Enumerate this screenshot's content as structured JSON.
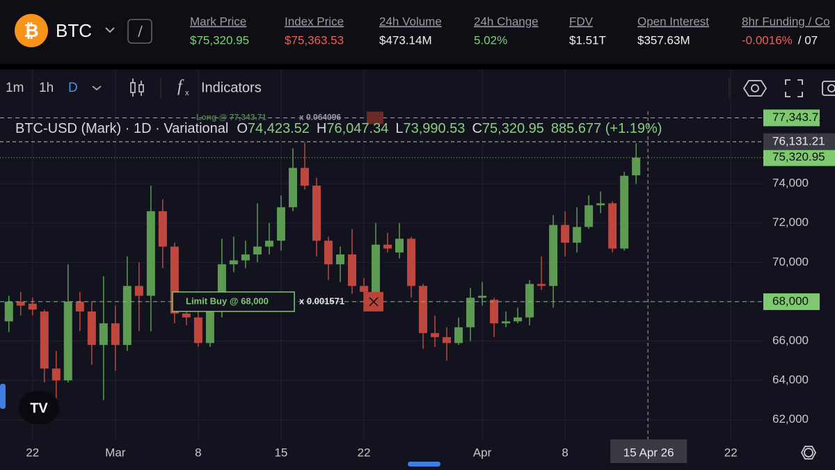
{
  "header": {
    "symbol": "BTC",
    "stats": [
      {
        "label": "Mark Price",
        "value": "$75,320.95",
        "tone": "up"
      },
      {
        "label": "Index Price",
        "value": "$75,363.53",
        "tone": "down"
      },
      {
        "label": "24h Volume",
        "value": "$473.14M",
        "tone": "plain"
      },
      {
        "label": "24h Change",
        "value": "5.02%",
        "tone": "up"
      },
      {
        "label": "FDV",
        "value": "$1.51T",
        "tone": "plain"
      },
      {
        "label": "Open Interest",
        "value": "$357.63M",
        "tone": "plain"
      },
      {
        "label": "8hr Funding / Co",
        "value": "-0.0016%",
        "tone": "down",
        "extra": "/ 07"
      }
    ]
  },
  "toolbar": {
    "intervals": [
      "1m",
      "1h",
      "D"
    ],
    "indicators": "Indicators"
  },
  "chart_data": {
    "type": "candlestick",
    "title": "BTC-USD (Mark) · 1D · Variational",
    "legend": [
      {
        "key": "O",
        "value": "74,423.52"
      },
      {
        "key": "H",
        "value": "76,047.34"
      },
      {
        "key": "L",
        "value": "73,990.53"
      },
      {
        "key": "C",
        "value": "75,320.95"
      }
    ],
    "change": "885.677 (+1.19%)",
    "up_color": "#5d9a52",
    "down_color": "#c0473e",
    "open": [
      67000,
      68000,
      67900,
      67500,
      64600,
      64000,
      68000,
      67500,
      65800,
      66900,
      65800,
      68800,
      68300,
      72600,
      70800,
      67400,
      67200,
      65900,
      67800,
      69900,
      70100,
      70400,
      70800,
      71100,
      72800,
      74800,
      73900,
      71100,
      69900,
      70400,
      68800,
      68000,
      70900,
      70500,
      71200,
      68800,
      66400,
      66200,
      65900,
      66700,
      68200,
      68100,
      66900,
      67000,
      67200,
      68900,
      68800,
      71900,
      71000,
      71800,
      72900,
      73000,
      70700,
      74423.52
    ],
    "high": [
      68300,
      68500,
      68200,
      67600,
      65500,
      69900,
      68500,
      68000,
      69300,
      67800,
      70300,
      70000,
      73900,
      73200,
      71000,
      67800,
      67500,
      68200,
      71200,
      71300,
      71100,
      73000,
      72000,
      73400,
      75800,
      76100,
      74300,
      71300,
      70800,
      71700,
      69200,
      72000,
      71500,
      72000,
      71300,
      68900,
      67300,
      66700,
      67200,
      68700,
      69000,
      68200,
      67500,
      67700,
      69100,
      70300,
      72400,
      72600,
      72800,
      73400,
      73600,
      73100,
      74600,
      76047.34
    ],
    "low": [
      66450,
      67300,
      67300,
      63900,
      62600,
      63900,
      66500,
      64800,
      63000,
      64500,
      65500,
      66500,
      66500,
      69700,
      66900,
      66800,
      65700,
      65700,
      67200,
      69500,
      69700,
      70000,
      70400,
      70600,
      72600,
      73700,
      70300,
      69100,
      69000,
      68400,
      67500,
      67700,
      70500,
      70200,
      68200,
      65600,
      65700,
      65000,
      65800,
      66000,
      67800,
      66200,
      66700,
      66900,
      66800,
      68600,
      67700,
      70300,
      70500,
      71700,
      72500,
      70500,
      70600,
      73990.53
    ],
    "close": [
      68000,
      67800,
      67600,
      64600,
      64000,
      68000,
      67500,
      65800,
      66900,
      65800,
      68800,
      68300,
      72600,
      70800,
      67400,
      67200,
      65900,
      67800,
      69900,
      70100,
      70400,
      70800,
      71100,
      72800,
      74800,
      73900,
      71100,
      69900,
      70400,
      68800,
      68500,
      70900,
      70700,
      71200,
      68800,
      66400,
      66200,
      65900,
      66700,
      68200,
      68300,
      66900,
      67000,
      67200,
      68900,
      68800,
      71900,
      71000,
      71800,
      72900,
      73000,
      70700,
      74400,
      75320.95
    ],
    "xlim": [
      -0.75,
      63.75
    ],
    "xticks": [
      {
        "value": 2,
        "label": "22"
      },
      {
        "value": 9,
        "label": "Mar"
      },
      {
        "value": 16,
        "label": "8"
      },
      {
        "value": 23,
        "label": "15"
      },
      {
        "value": 30,
        "label": "22"
      },
      {
        "value": 40,
        "label": "Apr"
      },
      {
        "value": 47,
        "label": "8"
      },
      {
        "value": 61,
        "label": "22"
      }
    ],
    "ylim": [
      61000,
      77680
    ],
    "yticks": [
      {
        "value": 62000,
        "label": "62,000"
      },
      {
        "value": 64000,
        "label": "64,000"
      },
      {
        "value": 66000,
        "label": "66,000"
      },
      {
        "value": 68000,
        "label": "68,000"
      },
      {
        "value": 70000,
        "label": "70,000"
      },
      {
        "value": 72000,
        "label": "72,000"
      },
      {
        "value": 74000,
        "label": "74,000"
      }
    ],
    "grid": true,
    "orders": [
      {
        "text": "Long @ 77,343.71",
        "size": "x 0.064096",
        "price": 77343.71,
        "price_label": "77,343.71"
      },
      {
        "text": "Limit Buy @ 68,000",
        "size": "x 0.001571",
        "price": 68000,
        "price_label": "68,000"
      }
    ],
    "mark_price": {
      "value": 75320.95,
      "label": "75,320.95"
    },
    "crosshair": {
      "x": 54,
      "x_label": "15 Apr 26",
      "y": 76131.21,
      "y_label": "76,131.21"
    }
  }
}
